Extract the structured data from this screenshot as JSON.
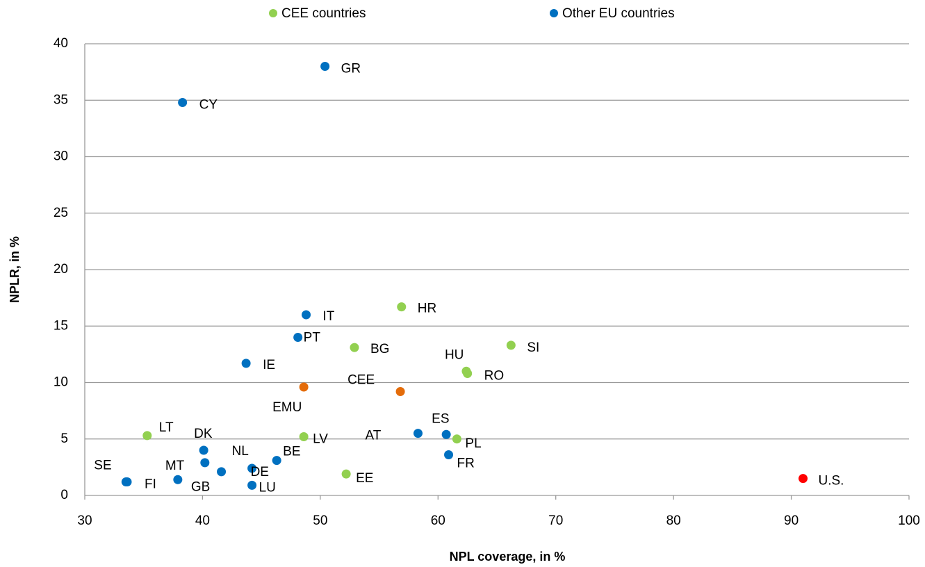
{
  "chart_data": {
    "type": "scatter",
    "x_label": "NPL coverage, in %",
    "y_label": "NPLR, in %",
    "xlim": [
      30,
      100
    ],
    "ylim": [
      0,
      40
    ],
    "xticks": [
      30,
      40,
      50,
      60,
      70,
      80,
      90,
      100
    ],
    "yticks": [
      0,
      5,
      10,
      15,
      20,
      25,
      30,
      35,
      40
    ],
    "grid": true,
    "legend": "top",
    "series": [
      {
        "name": "CEE countries",
        "color": "#92d050",
        "labels": [
          "HR",
          "BG",
          "SI",
          "HU",
          "RO",
          "LT",
          "LV",
          "PL",
          "EE"
        ],
        "x": [
          56.9,
          52.9,
          66.2,
          62.4,
          62.5,
          35.3,
          48.6,
          61.6,
          52.2
        ],
        "values": [
          16.7,
          13.1,
          13.3,
          11.0,
          10.8,
          5.3,
          5.2,
          5.0,
          1.9
        ]
      },
      {
        "name": "Other EU countries",
        "color": "#0070c0",
        "labels": [
          "GR",
          "CY",
          "IT",
          "PT",
          "IE",
          "DK",
          "SE",
          "FI",
          "GB",
          "MT",
          "NL",
          "DE",
          "LU",
          "BE",
          "AT",
          "ES",
          "FR"
        ],
        "x": [
          50.4,
          38.3,
          48.8,
          48.1,
          43.7,
          40.1,
          33.5,
          33.6,
          37.9,
          40.2,
          41.6,
          44.2,
          44.2,
          46.3,
          58.3,
          60.7,
          60.9
        ],
        "values": [
          38.0,
          34.8,
          16.0,
          14.0,
          11.7,
          4.0,
          1.2,
          1.2,
          1.4,
          2.9,
          2.1,
          2.4,
          0.9,
          3.1,
          5.5,
          5.4,
          3.6
        ]
      },
      {
        "color": "#e46c0a",
        "labels": [
          "EMU",
          "CEE"
        ],
        "x": [
          48.6,
          56.8
        ],
        "values": [
          9.6,
          9.2
        ]
      },
      {
        "color": "#ff0000",
        "labels": [
          "U.S."
        ],
        "x": [
          91.0
        ],
        "values": [
          1.5
        ]
      }
    ]
  }
}
